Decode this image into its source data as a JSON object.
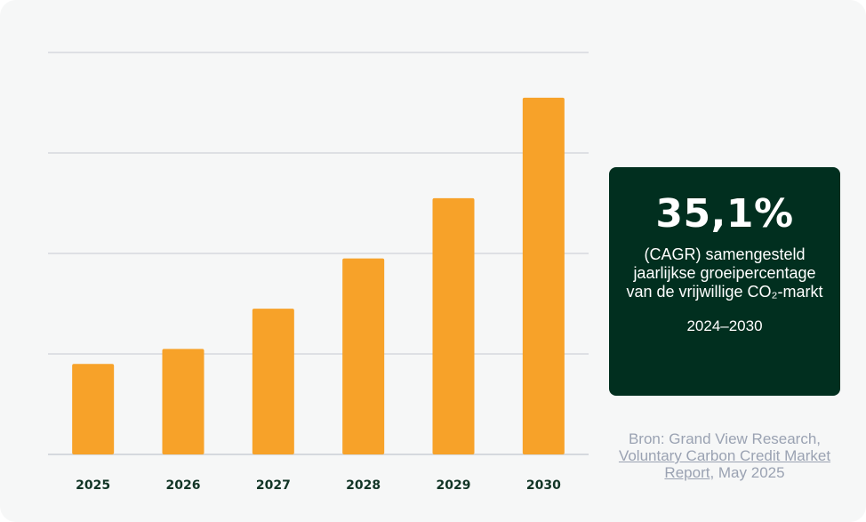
{
  "chart_data": {
    "type": "bar",
    "title": "",
    "xlabel": "",
    "ylabel": "",
    "categories": [
      "2025",
      "2026",
      "2027",
      "2028",
      "2029",
      "2030"
    ],
    "values": [
      0.9,
      1.05,
      1.45,
      1.95,
      2.55,
      3.55
    ],
    "ylim": [
      0,
      4
    ],
    "y_gridlines": [
      0,
      1,
      2,
      3,
      4
    ],
    "grid": true,
    "y_tick_labels_shown": false,
    "legend": "none",
    "bar_color": "#f7a229",
    "grid_color": "#d5d9de"
  },
  "stat": {
    "value": "35,1%",
    "description": "(CAGR) samengesteld jaarlijkse groeipercentage van de vrijwillige CO₂-markt",
    "period": "2024–2030",
    "background_color": "#012f1f"
  },
  "source": {
    "prefix": "Bron: Grand View Research,",
    "link_text": "Voluntary Carbon Credit Market Report",
    "suffix": ", May 2025"
  }
}
